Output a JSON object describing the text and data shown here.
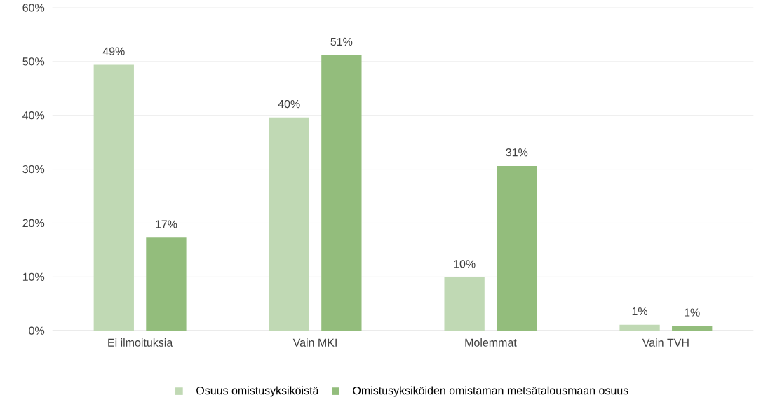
{
  "chart_data": {
    "type": "bar",
    "categories": [
      "Ei ilmoituksia",
      "Vain MKI",
      "Molemmat",
      "Vain TVH"
    ],
    "series": [
      {
        "name": "Osuus omistusyksiköistä",
        "color": "#c0d9b4",
        "values": [
          49.4,
          39.6,
          9.9,
          1.1
        ],
        "value_labels": [
          "49%",
          "40%",
          "10%",
          "1%"
        ]
      },
      {
        "name": "Omistusyksiköiden omistaman metsätalousmaan osuus",
        "color": "#93bd7c",
        "values": [
          17.3,
          51.2,
          30.6,
          0.9
        ],
        "value_labels": [
          "17%",
          "51%",
          "31%",
          "1%"
        ]
      }
    ],
    "ylim": [
      0,
      60
    ],
    "yticks": [
      {
        "value": 0,
        "label": "0%"
      },
      {
        "value": 10,
        "label": "10%"
      },
      {
        "value": 20,
        "label": "20%"
      },
      {
        "value": 30,
        "label": "30%"
      },
      {
        "value": 40,
        "label": "40%"
      },
      {
        "value": 50,
        "label": "50%"
      },
      {
        "value": 60,
        "label": "60%"
      }
    ],
    "grid": "y",
    "legend": "bottom"
  }
}
